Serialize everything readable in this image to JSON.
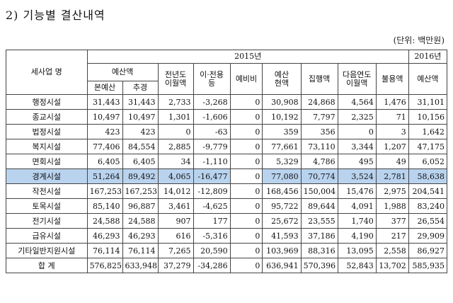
{
  "title": "2) 기능별 결산내역",
  "unit": "(단위: 백만원)",
  "header": {
    "col_name": "세사업 명",
    "year_2015": "2015년",
    "year_2016": "2016년",
    "budget": "예산액",
    "orig_budget": "본예산",
    "supp_budget": "추경",
    "carry_in_l1": "전년도",
    "carry_in_l2": "이월액",
    "transfer_l1": "이·전용",
    "transfer_l2": "등",
    "reserve": "예비비",
    "budget_now_l1": "예산",
    "budget_now_l2": "현액",
    "executed": "집행액",
    "carry_out_l1": "다음연도",
    "carry_out_l2": "이월액",
    "unused": "불용액",
    "budget_2016": "예산액"
  },
  "rows": [
    {
      "name": "행정시설",
      "v": [
        "31,443",
        "31,443",
        "2,733",
        "-3,268",
        "0",
        "30,908",
        "24,868",
        "4,564",
        "1,476",
        "31,101"
      ]
    },
    {
      "name": "종교시설",
      "v": [
        "10,497",
        "10,497",
        "1,301",
        "-1,606",
        "0",
        "10,192",
        "7,797",
        "2,325",
        "71",
        "10,156"
      ]
    },
    {
      "name": "법정시설",
      "v": [
        "423",
        "423",
        "0",
        "-63",
        "0",
        "359",
        "356",
        "0",
        "3",
        "1,642"
      ]
    },
    {
      "name": "복지시설",
      "v": [
        "77,406",
        "84,554",
        "2,885",
        "-9,779",
        "0",
        "77,661",
        "73,110",
        "3,344",
        "1,207",
        "47,175"
      ]
    },
    {
      "name": "면회시설",
      "v": [
        "6,405",
        "6,405",
        "34",
        "-1,110",
        "0",
        "5,329",
        "4,786",
        "495",
        "49",
        "6,052"
      ]
    },
    {
      "name": "경계시설",
      "v": [
        "51,264",
        "89,492",
        "4,065",
        "-16,477",
        "0",
        "77,080",
        "70,774",
        "3,524",
        "2,781",
        "58,638"
      ]
    },
    {
      "name": "작전시설",
      "v": [
        "167,253",
        "167,253",
        "14,012",
        "-12,809",
        "0",
        "168,456",
        "150,004",
        "15,476",
        "2,975",
        "204,541"
      ]
    },
    {
      "name": "토목시설",
      "v": [
        "85,140",
        "96,887",
        "3,461",
        "-4,625",
        "0",
        "95,722",
        "89,644",
        "4,091",
        "1,988",
        "83,240"
      ]
    },
    {
      "name": "전기시설",
      "v": [
        "24,588",
        "24,588",
        "907",
        "177",
        "0",
        "25,672",
        "23,555",
        "1,740",
        "377",
        "26,554"
      ]
    },
    {
      "name": "급유시설",
      "v": [
        "46,293",
        "46,293",
        "616",
        "-5,316",
        "0",
        "41,593",
        "37,186",
        "4,190",
        "217",
        "29,909"
      ]
    },
    {
      "name": "기타일반지원시설",
      "v": [
        "76,114",
        "76,114",
        "7,265",
        "20,590",
        "0",
        "103,969",
        "88,316",
        "13,095",
        "2,558",
        "86,927"
      ]
    },
    {
      "name": "합 계",
      "v": [
        "576,825",
        "633,948",
        "37,279",
        "-34,286",
        "0",
        "636,941",
        "570,396",
        "52,843",
        "13,702",
        "585,935"
      ]
    }
  ],
  "highlight_color": "#b9d3ee"
}
